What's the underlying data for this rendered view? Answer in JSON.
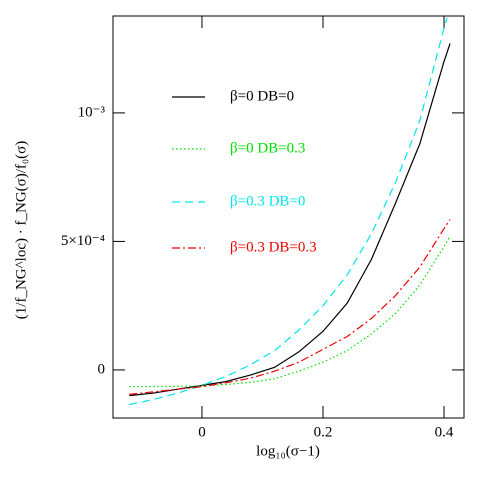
{
  "chart_data": {
    "type": "line",
    "xlabel": "log₁₀(σ−1)",
    "ylabel": "(1/f_NG^loc) · f_NG(σ)/f₀(σ)",
    "xlim": [
      -0.147,
      0.433
    ],
    "ylim": [
      -0.000187,
      0.001377
    ],
    "xticks": [
      0,
      0.2,
      0.4
    ],
    "yticks": [
      {
        "value": 0,
        "label": "0"
      },
      {
        "value": 0.0005,
        "label": "5×10⁻⁴"
      },
      {
        "value": 0.001,
        "label": "10⁻³"
      }
    ],
    "series": [
      {
        "name": "β=0 DB=0",
        "color": "#000000",
        "dash": "solid",
        "x": [
          -0.12,
          -0.08,
          -0.04,
          0,
          0.04,
          0.08,
          0.12,
          0.16,
          0.2,
          0.24,
          0.28,
          0.32,
          0.36,
          0.4,
          0.41
        ],
        "values": [
          -0.0001,
          -9e-05,
          -7.5e-05,
          -6e-05,
          -4.5e-05,
          -2e-05,
          1e-05,
          7e-05,
          0.00015,
          0.00026,
          0.00043,
          0.00065,
          0.00088,
          0.0012,
          0.00127
        ]
      },
      {
        "name": "β=0 DB=0.3",
        "color": "#00e000",
        "dash": "dotted",
        "x": [
          -0.12,
          -0.08,
          -0.04,
          0,
          0.04,
          0.08,
          0.12,
          0.16,
          0.2,
          0.24,
          0.28,
          0.32,
          0.36,
          0.4,
          0.41
        ],
        "values": [
          -6.5e-05,
          -6.5e-05,
          -6.4e-05,
          -6.2e-05,
          -5.7e-05,
          -4.8e-05,
          -3.4e-05,
          -5e-06,
          3e-05,
          7.5e-05,
          0.00014,
          0.00022,
          0.00033,
          0.00048,
          0.00052
        ]
      },
      {
        "name": "β=0.3 DB=0",
        "color": "#00e5ee",
        "dash": "dashed",
        "x": [
          -0.12,
          -0.08,
          -0.04,
          0,
          0.04,
          0.08,
          0.12,
          0.16,
          0.2,
          0.24,
          0.28,
          0.32,
          0.36,
          0.4,
          0.405
        ],
        "values": [
          -0.000135,
          -0.000115,
          -9e-05,
          -6e-05,
          -2.5e-05,
          2e-05,
          7.5e-05,
          0.000155,
          0.00025,
          0.00037,
          0.00053,
          0.00073,
          0.00097,
          0.00133,
          0.00137
        ]
      },
      {
        "name": "β=0.3 DB=0.3",
        "color": "#ee0000",
        "dash": "dashdot",
        "x": [
          -0.12,
          -0.08,
          -0.04,
          0,
          0.04,
          0.08,
          0.12,
          0.16,
          0.2,
          0.24,
          0.28,
          0.32,
          0.36,
          0.4,
          0.41
        ],
        "values": [
          -9.5e-05,
          -8.5e-05,
          -7.5e-05,
          -6.5e-05,
          -5e-05,
          -3.2e-05,
          -5e-06,
          3e-05,
          8e-05,
          0.00013,
          0.0002,
          0.00029,
          0.0004,
          0.00055,
          0.000585
        ]
      }
    ]
  }
}
